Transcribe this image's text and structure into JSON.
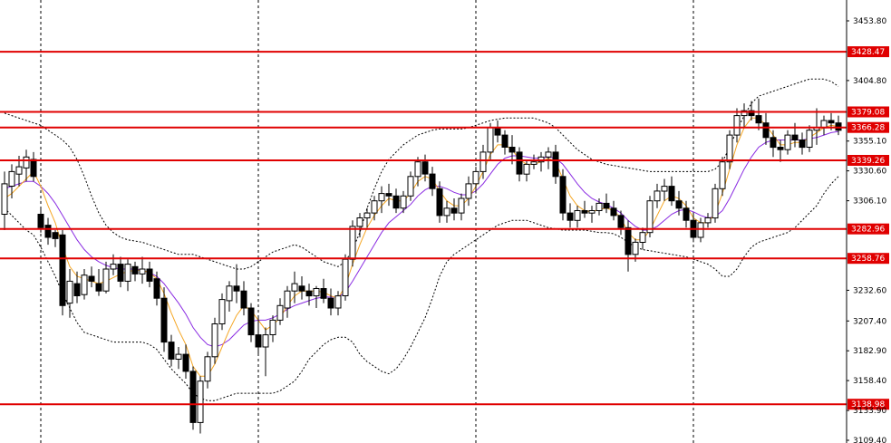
{
  "chart_data": {
    "type": "candlestick",
    "title": "",
    "xlabel": "",
    "ylabel": "",
    "y_axis_side": "right",
    "ylim": [
      3109.4,
      3470.0
    ],
    "y_ticks": [
      "3453.80",
      "3404.80",
      "3355.10",
      "3330.60",
      "3306.10",
      "3232.60",
      "3207.40",
      "3182.90",
      "3158.40",
      "3133.90",
      "3109.40"
    ],
    "grid": "vertical-dashed",
    "period_separators": [
      45,
      285,
      525,
      765
    ],
    "horizontal_levels": [
      {
        "value": 3428.47,
        "label": "3428.47"
      },
      {
        "value": 3379.08,
        "label": "3379.08"
      },
      {
        "value": 3366.28,
        "label": "3366.28"
      },
      {
        "value": 3339.26,
        "label": "3339.26"
      },
      {
        "value": 3282.96,
        "label": "3282.96"
      },
      {
        "value": 3258.76,
        "label": "3258.76"
      },
      {
        "value": 3138.98,
        "label": "3138.98"
      }
    ],
    "candles": [
      [
        3295,
        3330,
        3282,
        3320
      ],
      [
        3318,
        3336,
        3308,
        3330
      ],
      [
        3328,
        3343,
        3318,
        3334
      ],
      [
        3333,
        3348,
        3322,
        3342
      ],
      [
        3340,
        3346,
        3322,
        3326
      ],
      [
        3295,
        3300,
        3280,
        3284
      ],
      [
        3286,
        3292,
        3270,
        3276
      ],
      [
        3280,
        3282,
        3268,
        3275
      ],
      [
        3278,
        3282,
        3212,
        3220
      ],
      [
        3222,
        3250,
        3210,
        3240
      ],
      [
        3238,
        3248,
        3222,
        3228
      ],
      [
        3229,
        3250,
        3225,
        3245
      ],
      [
        3244,
        3252,
        3235,
        3240
      ],
      [
        3238,
        3250,
        3228,
        3232
      ],
      [
        3232,
        3256,
        3230,
        3250
      ],
      [
        3250,
        3262,
        3245,
        3254
      ],
      [
        3254,
        3260,
        3235,
        3240
      ],
      [
        3240,
        3258,
        3232,
        3254
      ],
      [
        3252,
        3256,
        3240,
        3246
      ],
      [
        3246,
        3260,
        3238,
        3250
      ],
      [
        3250,
        3256,
        3235,
        3240
      ],
      [
        3242,
        3248,
        3220,
        3226
      ],
      [
        3226,
        3235,
        3182,
        3190
      ],
      [
        3190,
        3196,
        3170,
        3176
      ],
      [
        3176,
        3186,
        3168,
        3180
      ],
      [
        3180,
        3188,
        3160,
        3166
      ],
      [
        3166,
        3170,
        3118,
        3124
      ],
      [
        3124,
        3162,
        3115,
        3158
      ],
      [
        3158,
        3182,
        3152,
        3178
      ],
      [
        3178,
        3210,
        3172,
        3205
      ],
      [
        3205,
        3230,
        3200,
        3225
      ],
      [
        3224,
        3240,
        3215,
        3236
      ],
      [
        3236,
        3254,
        3222,
        3232
      ],
      [
        3232,
        3240,
        3212,
        3218
      ],
      [
        3218,
        3222,
        3190,
        3196
      ],
      [
        3196,
        3210,
        3180,
        3186
      ],
      [
        3186,
        3202,
        3162,
        3196
      ],
      [
        3196,
        3212,
        3190,
        3208
      ],
      [
        3208,
        3226,
        3204,
        3220
      ],
      [
        3218,
        3236,
        3210,
        3232
      ],
      [
        3232,
        3248,
        3222,
        3238
      ],
      [
        3236,
        3244,
        3225,
        3232
      ],
      [
        3232,
        3238,
        3220,
        3228
      ],
      [
        3228,
        3236,
        3218,
        3234
      ],
      [
        3234,
        3242,
        3222,
        3226
      ],
      [
        3226,
        3234,
        3212,
        3218
      ],
      [
        3218,
        3232,
        3212,
        3228
      ],
      [
        3228,
        3262,
        3224,
        3258
      ],
      [
        3258,
        3290,
        3252,
        3285
      ],
      [
        3285,
        3296,
        3276,
        3292
      ],
      [
        3292,
        3300,
        3284,
        3296
      ],
      [
        3296,
        3310,
        3290,
        3306
      ],
      [
        3306,
        3318,
        3296,
        3312
      ],
      [
        3312,
        3320,
        3302,
        3310
      ],
      [
        3310,
        3316,
        3296,
        3300
      ],
      [
        3300,
        3314,
        3296,
        3310
      ],
      [
        3310,
        3330,
        3306,
        3326
      ],
      [
        3326,
        3342,
        3318,
        3338
      ],
      [
        3338,
        3344,
        3322,
        3328
      ],
      [
        3328,
        3334,
        3310,
        3316
      ],
      [
        3316,
        3322,
        3288,
        3294
      ],
      [
        3294,
        3306,
        3288,
        3300
      ],
      [
        3300,
        3308,
        3290,
        3296
      ],
      [
        3296,
        3312,
        3290,
        3308
      ],
      [
        3308,
        3326,
        3302,
        3320
      ],
      [
        3320,
        3334,
        3312,
        3330
      ],
      [
        3330,
        3352,
        3324,
        3346
      ],
      [
        3346,
        3370,
        3340,
        3366
      ],
      [
        3366,
        3372,
        3354,
        3360
      ],
      [
        3360,
        3364,
        3344,
        3350
      ],
      [
        3350,
        3360,
        3336,
        3346
      ],
      [
        3346,
        3350,
        3322,
        3328
      ],
      [
        3328,
        3340,
        3322,
        3336
      ],
      [
        3336,
        3344,
        3332,
        3338
      ],
      [
        3338,
        3346,
        3330,
        3342
      ],
      [
        3342,
        3350,
        3332,
        3346
      ],
      [
        3346,
        3352,
        3320,
        3326
      ],
      [
        3326,
        3332,
        3290,
        3296
      ],
      [
        3296,
        3304,
        3284,
        3290
      ],
      [
        3290,
        3302,
        3284,
        3298
      ],
      [
        3298,
        3306,
        3292,
        3296
      ],
      [
        3296,
        3302,
        3288,
        3298
      ],
      [
        3298,
        3308,
        3294,
        3304
      ],
      [
        3304,
        3312,
        3296,
        3300
      ],
      [
        3300,
        3306,
        3290,
        3294
      ],
      [
        3294,
        3298,
        3278,
        3284
      ],
      [
        3284,
        3290,
        3248,
        3262
      ],
      [
        3262,
        3275,
        3256,
        3272
      ],
      [
        3272,
        3284,
        3266,
        3280
      ],
      [
        3280,
        3310,
        3276,
        3306
      ],
      [
        3306,
        3320,
        3300,
        3314
      ],
      [
        3314,
        3324,
        3306,
        3318
      ],
      [
        3318,
        3326,
        3302,
        3306
      ],
      [
        3306,
        3314,
        3294,
        3300
      ],
      [
        3300,
        3306,
        3284,
        3290
      ],
      [
        3290,
        3296,
        3272,
        3276
      ],
      [
        3276,
        3292,
        3272,
        3288
      ],
      [
        3288,
        3296,
        3284,
        3292
      ],
      [
        3292,
        3320,
        3288,
        3316
      ],
      [
        3316,
        3342,
        3310,
        3338
      ],
      [
        3338,
        3364,
        3332,
        3360
      ],
      [
        3360,
        3382,
        3354,
        3376
      ],
      [
        3376,
        3386,
        3366,
        3380
      ],
      [
        3380,
        3388,
        3372,
        3376
      ],
      [
        3376,
        3390,
        3364,
        3370
      ],
      [
        3370,
        3378,
        3352,
        3358
      ],
      [
        3358,
        3364,
        3342,
        3350
      ],
      [
        3350,
        3356,
        3338,
        3348
      ],
      [
        3348,
        3364,
        3344,
        3360
      ],
      [
        3360,
        3370,
        3350,
        3356
      ],
      [
        3356,
        3362,
        3344,
        3350
      ],
      [
        3350,
        3368,
        3346,
        3364
      ],
      [
        3364,
        3382,
        3352,
        3366
      ],
      [
        3366,
        3376,
        3360,
        3372
      ],
      [
        3372,
        3378,
        3364,
        3370
      ],
      [
        3370,
        3376,
        3360,
        3364
      ]
    ],
    "fast_ma": [
      3308,
      3312,
      3318,
      3324,
      3330,
      3318,
      3302,
      3288,
      3268,
      3252,
      3244,
      3242,
      3240,
      3238,
      3240,
      3243,
      3246,
      3248,
      3249,
      3249,
      3247,
      3242,
      3230,
      3214,
      3200,
      3188,
      3170,
      3162,
      3162,
      3172,
      3186,
      3200,
      3212,
      3220,
      3216,
      3208,
      3200,
      3204,
      3210,
      3220,
      3228,
      3232,
      3232,
      3232,
      3231,
      3228,
      3226,
      3236,
      3254,
      3270,
      3284,
      3294,
      3302,
      3308,
      3306,
      3306,
      3312,
      3322,
      3326,
      3324,
      3314,
      3306,
      3302,
      3302,
      3308,
      3318,
      3330,
      3344,
      3352,
      3352,
      3348,
      3340,
      3336,
      3336,
      3338,
      3341,
      3338,
      3324,
      3310,
      3302,
      3298,
      3297,
      3299,
      3300,
      3298,
      3292,
      3280,
      3274,
      3274,
      3282,
      3294,
      3306,
      3310,
      3308,
      3302,
      3292,
      3288,
      3288,
      3296,
      3312,
      3332,
      3352,
      3366,
      3374,
      3374,
      3368,
      3360,
      3352,
      3352,
      3354,
      3354,
      3358,
      3362,
      3366,
      3368,
      3367
    ],
    "slow_ma": [
      3316,
      3318,
      3320,
      3322,
      3322,
      3318,
      3312,
      3304,
      3294,
      3284,
      3274,
      3266,
      3260,
      3256,
      3253,
      3251,
      3250,
      3250,
      3250,
      3249,
      3247,
      3244,
      3238,
      3230,
      3222,
      3213,
      3202,
      3194,
      3188,
      3186,
      3188,
      3192,
      3198,
      3204,
      3207,
      3208,
      3208,
      3210,
      3213,
      3217,
      3220,
      3222,
      3224,
      3226,
      3227,
      3227,
      3227,
      3231,
      3240,
      3250,
      3260,
      3270,
      3280,
      3288,
      3293,
      3298,
      3303,
      3310,
      3315,
      3318,
      3318,
      3316,
      3313,
      3311,
      3311,
      3314,
      3320,
      3328,
      3336,
      3341,
      3343,
      3343,
      3342,
      3341,
      3341,
      3342,
      3341,
      3336,
      3328,
      3320,
      3313,
      3308,
      3305,
      3303,
      3300,
      3296,
      3290,
      3285,
      3282,
      3282,
      3285,
      3290,
      3295,
      3298,
      3299,
      3297,
      3294,
      3292,
      3293,
      3298,
      3308,
      3320,
      3332,
      3342,
      3350,
      3354,
      3356,
      3356,
      3356,
      3356,
      3356,
      3357,
      3358,
      3360,
      3362,
      3363
    ],
    "bb_upper": [
      3378,
      3376,
      3374,
      3372,
      3370,
      3368,
      3364,
      3360,
      3356,
      3350,
      3340,
      3326,
      3310,
      3296,
      3286,
      3280,
      3276,
      3274,
      3273,
      3272,
      3270,
      3268,
      3266,
      3264,
      3262,
      3262,
      3262,
      3260,
      3258,
      3256,
      3254,
      3252,
      3250,
      3250,
      3252,
      3256,
      3260,
      3264,
      3266,
      3268,
      3270,
      3268,
      3264,
      3260,
      3256,
      3254,
      3252,
      3256,
      3266,
      3280,
      3300,
      3316,
      3330,
      3340,
      3346,
      3352,
      3356,
      3360,
      3362,
      3364,
      3365,
      3365,
      3365,
      3365,
      3366,
      3368,
      3370,
      3372,
      3373,
      3374,
      3374,
      3374,
      3374,
      3374,
      3372,
      3370,
      3366,
      3360,
      3354,
      3348,
      3344,
      3340,
      3338,
      3336,
      3335,
      3334,
      3333,
      3332,
      3331,
      3330,
      3330,
      3330,
      3330,
      3330,
      3330,
      3330,
      3330,
      3330,
      3332,
      3338,
      3350,
      3364,
      3376,
      3386,
      3392,
      3394,
      3396,
      3398,
      3400,
      3402,
      3404,
      3406,
      3406,
      3406,
      3404,
      3400
    ],
    "bb_lower": [
      3300,
      3294,
      3288,
      3282,
      3278,
      3268,
      3256,
      3244,
      3230,
      3218,
      3206,
      3198,
      3196,
      3194,
      3192,
      3190,
      3190,
      3190,
      3190,
      3190,
      3188,
      3184,
      3176,
      3168,
      3162,
      3156,
      3148,
      3144,
      3142,
      3142,
      3144,
      3146,
      3148,
      3148,
      3148,
      3148,
      3148,
      3148,
      3150,
      3154,
      3158,
      3166,
      3176,
      3182,
      3188,
      3192,
      3194,
      3194,
      3190,
      3180,
      3174,
      3170,
      3166,
      3164,
      3168,
      3176,
      3186,
      3198,
      3210,
      3226,
      3244,
      3256,
      3262,
      3266,
      3270,
      3274,
      3278,
      3282,
      3286,
      3288,
      3290,
      3290,
      3290,
      3288,
      3286,
      3284,
      3283,
      3282,
      3282,
      3282,
      3282,
      3281,
      3280,
      3280,
      3279,
      3276,
      3272,
      3268,
      3266,
      3265,
      3264,
      3263,
      3262,
      3261,
      3260,
      3258,
      3256,
      3254,
      3250,
      3244,
      3244,
      3250,
      3260,
      3268,
      3272,
      3274,
      3276,
      3278,
      3280,
      3284,
      3290,
      3296,
      3302,
      3312,
      3320,
      3326
    ],
    "colors": {
      "bull_fill": "#ffffff",
      "bear_fill": "#000000",
      "candle_edge": "#000000",
      "fast_ma": "#f5a623",
      "slow_ma": "#8a2be2",
      "bands": "#000000",
      "levels": "#e00000"
    }
  }
}
